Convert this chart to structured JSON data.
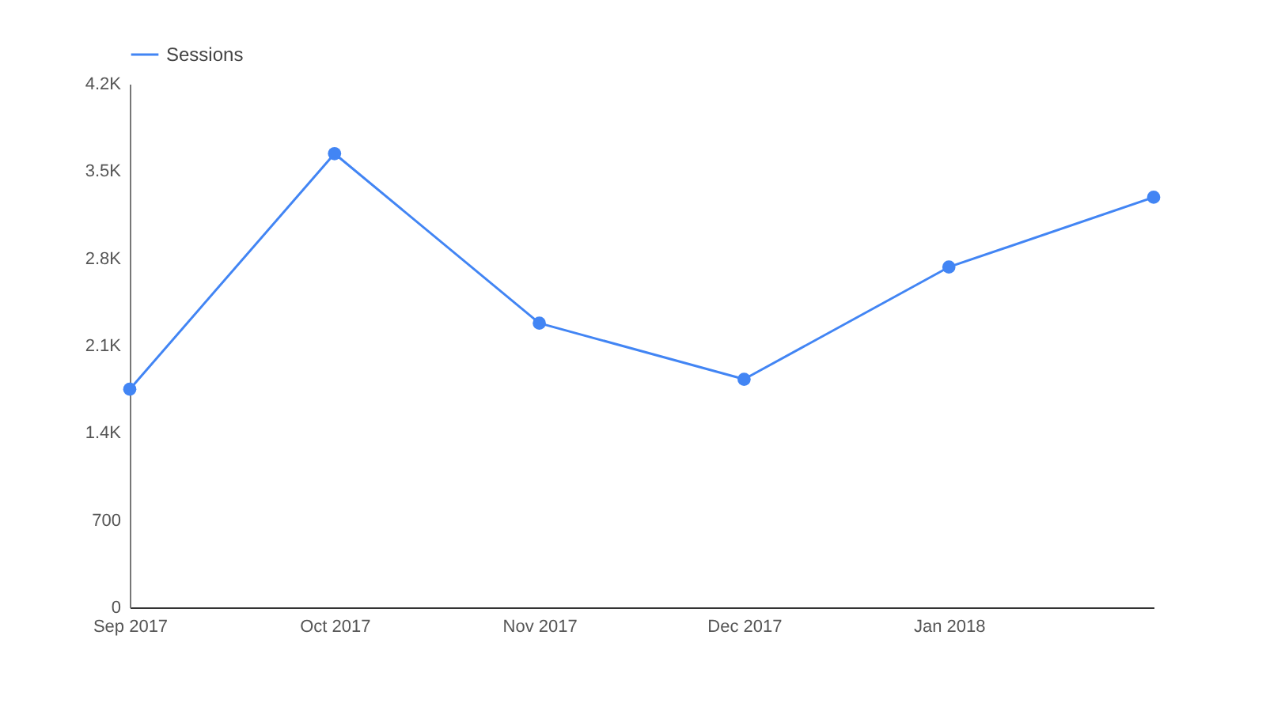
{
  "chart_data": {
    "type": "line",
    "categories": [
      "Sep 2017",
      "Oct 2017",
      "Nov 2017",
      "Dec 2017",
      "Jan 2018",
      null
    ],
    "series": [
      {
        "name": "Sessions",
        "color": "#4285f4",
        "values": [
          1750,
          3640,
          2280,
          1830,
          2730,
          3290
        ]
      }
    ],
    "ylim": [
      0,
      4200
    ],
    "yticks": [
      0,
      700,
      {
        "value": 1400,
        "label": "1.4K"
      },
      {
        "value": 2100,
        "label": "2.1K"
      },
      {
        "value": 2800,
        "label": "2.8K"
      },
      {
        "value": 3500,
        "label": "3.5K"
      },
      {
        "value": 4200,
        "label": "4.2K"
      }
    ],
    "grid": false,
    "legend": "top left",
    "marker": "circle",
    "line_style": "solid"
  }
}
